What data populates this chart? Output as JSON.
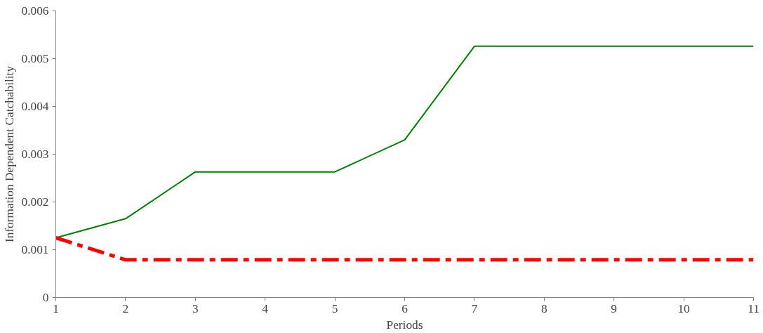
{
  "chart_data": {
    "type": "line",
    "xlabel": "Periods",
    "ylabel": "Information Dependent Catchability",
    "x": [
      1,
      2,
      3,
      4,
      5,
      6,
      7,
      8,
      9,
      10,
      11
    ],
    "xlim": [
      1,
      11
    ],
    "xticks": [
      1,
      2,
      3,
      4,
      5,
      6,
      7,
      8,
      9,
      10,
      11
    ],
    "ylim": [
      0,
      0.006
    ],
    "yticks": [
      0,
      0.001,
      0.002,
      0.003,
      0.004,
      0.005,
      0.006
    ],
    "marker": "none",
    "series": [
      {
        "color": "#008000",
        "line_style": "solid",
        "values": [
          0.00125,
          0.00165,
          0.00263,
          0.00263,
          0.00263,
          0.0033,
          0.00526,
          0.00526,
          0.00526,
          0.00526,
          0.00526
        ]
      },
      {
        "color": "#ff0000",
        "line_style": "dashed",
        "values": [
          0.00125,
          0.00079,
          0.00079,
          0.00079,
          0.00079,
          0.00079,
          0.00079,
          0.00079,
          0.00079,
          0.00079,
          0.00079
        ]
      }
    ]
  }
}
